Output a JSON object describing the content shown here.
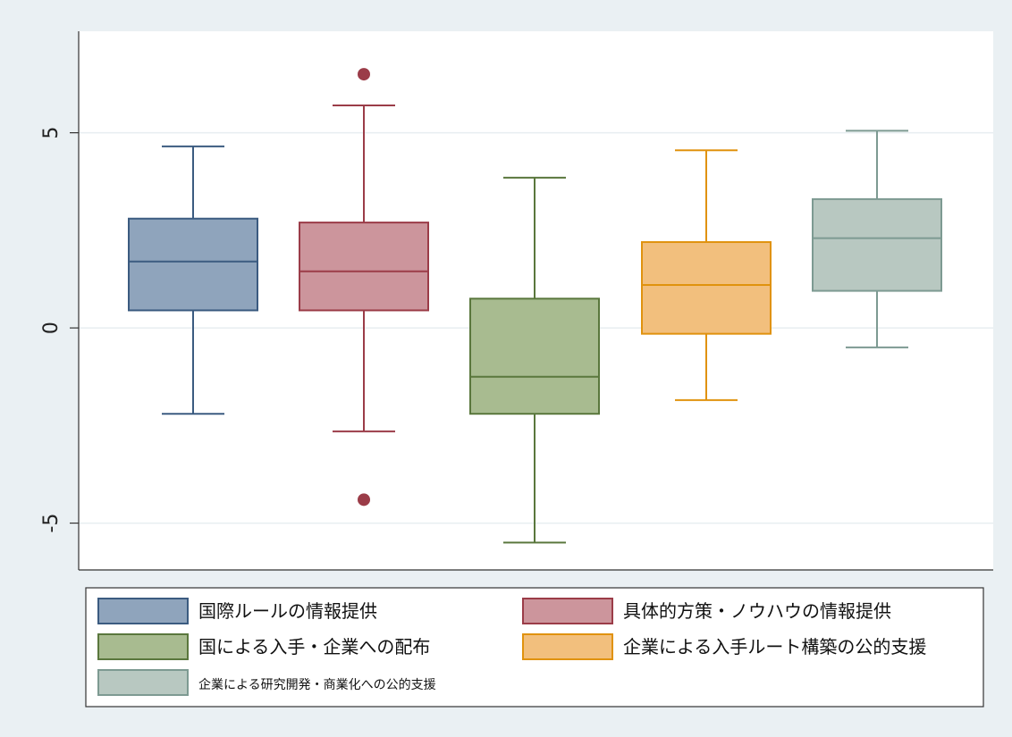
{
  "chart_data": {
    "type": "box",
    "title": "",
    "xlabel": "",
    "ylabel": "",
    "ylim": [
      -6.2,
      7.6
    ],
    "yticks": [
      -5,
      0,
      5
    ],
    "ytick_labels": [
      "-5",
      "0",
      "5"
    ],
    "grid": "horizontal",
    "legend_position": "bottom",
    "series": [
      {
        "name": "国際ルールの情報提供",
        "min": -2.2,
        "q1": 0.45,
        "median": 1.7,
        "q3": 2.8,
        "max": 4.65,
        "outliers": [],
        "color": "#3b5b80",
        "fill": "#8fa4bc"
      },
      {
        "name": "具体的方策・ノウハウの情報提供",
        "min": -2.65,
        "q1": 0.45,
        "median": 1.45,
        "q3": 2.7,
        "max": 5.7,
        "outliers": [
          6.5,
          -4.4
        ],
        "color": "#9b3c48",
        "fill": "#cc959c"
      },
      {
        "name": "国による入手・企業への配布",
        "min": -5.5,
        "q1": -2.2,
        "median": -1.25,
        "q3": 0.75,
        "max": 3.85,
        "outliers": [],
        "color": "#5a773d",
        "fill": "#a8bb90"
      },
      {
        "name": "企業による入手ルート構築の公的支援",
        "min": -1.85,
        "q1": -0.15,
        "median": 1.1,
        "q3": 2.2,
        "max": 4.55,
        "outliers": [],
        "color": "#e0920e",
        "fill": "#f2bf7d"
      },
      {
        "name": "企業による研究開発・商業化への公的支援",
        "min": -0.5,
        "q1": 0.95,
        "median": 2.3,
        "q3": 3.3,
        "max": 5.05,
        "outliers": [],
        "color": "#7d9a92",
        "fill": "#b8c8c1"
      }
    ]
  }
}
